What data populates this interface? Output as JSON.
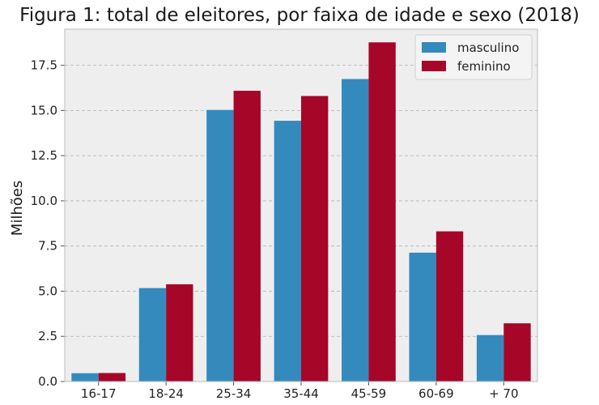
{
  "chart_data": {
    "type": "bar",
    "title": "Figura 1: total de eleitores, por faixa de idade e sexo (2018)",
    "xlabel": "",
    "ylabel": "Milhões",
    "categories": [
      "16-17",
      "18-24",
      "25-34",
      "35-44",
      "45-59",
      "60-69",
      "+ 70"
    ],
    "series": [
      {
        "name": "masculino",
        "color": "#348abd",
        "values": [
          0.46,
          5.17,
          15.03,
          14.43,
          16.74,
          7.13,
          2.57
        ]
      },
      {
        "name": "feminino",
        "color": "#a60628",
        "values": [
          0.47,
          5.38,
          16.09,
          15.8,
          18.77,
          8.31,
          3.22
        ]
      }
    ],
    "ylim": [
      0,
      19.5
    ],
    "yticks": [
      0.0,
      2.5,
      5.0,
      7.5,
      10.0,
      12.5,
      15.0,
      17.5
    ],
    "ytick_labels": [
      "0.0",
      "2.5",
      "5.0",
      "7.5",
      "10.0",
      "12.5",
      "15.0",
      "17.5"
    ],
    "grid": true,
    "legend_position": "top-right",
    "background_color": "#eeeeee",
    "grid_color": "#b0b0b0"
  }
}
